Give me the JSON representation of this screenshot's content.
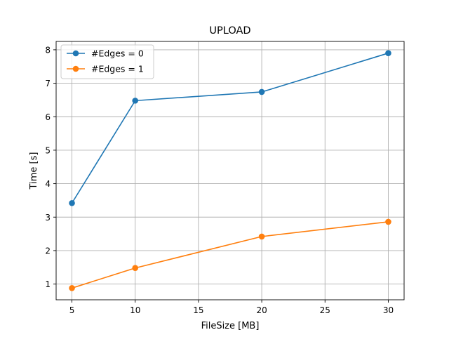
{
  "chart_data": {
    "type": "line",
    "title": "UPLOAD",
    "xlabel": "FileSize [MB]",
    "ylabel": "Time [s]",
    "xlim": [
      3.75,
      31.25
    ],
    "ylim": [
      0.53,
      8.25
    ],
    "xticks": [
      5,
      10,
      15,
      20,
      25,
      30
    ],
    "yticks": [
      1,
      2,
      3,
      4,
      5,
      6,
      7,
      8
    ],
    "grid": true,
    "legend_position": "upper-left",
    "series": [
      {
        "name": "#Edges = 0",
        "color": "#1f77b4",
        "marker": "circle",
        "x": [
          5,
          10,
          20,
          30
        ],
        "y": [
          3.42,
          6.48,
          6.74,
          7.9
        ]
      },
      {
        "name": "#Edges = 1",
        "color": "#ff7f0e",
        "marker": "circle",
        "x": [
          5,
          10,
          20,
          30
        ],
        "y": [
          0.88,
          1.48,
          2.42,
          2.86
        ]
      }
    ]
  }
}
